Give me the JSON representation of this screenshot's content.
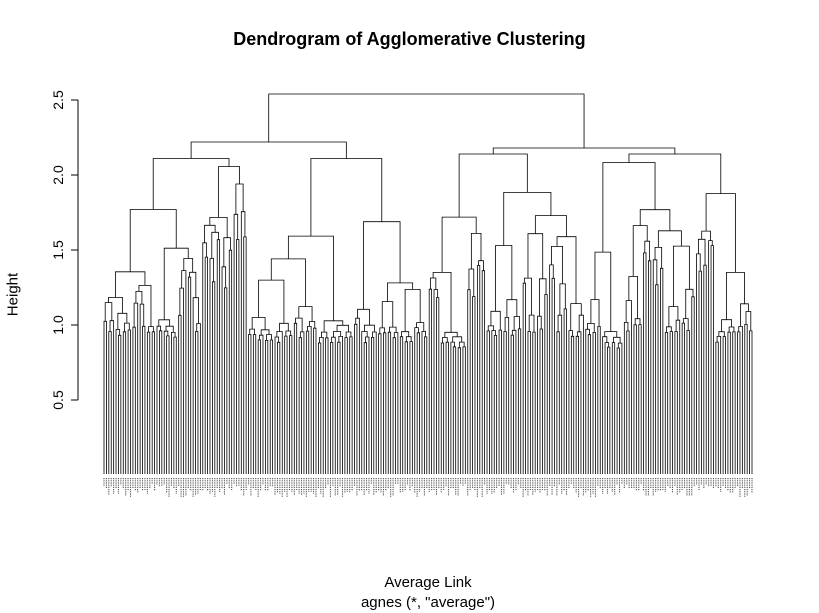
{
  "chart_data": {
    "type": "dendrogram",
    "title": "Dendrogram of Agglomerative Clustering",
    "xlabel": "Average Link",
    "sublabel": "agnes (*, \"average\")",
    "ylabel": "Height",
    "yticks": [
      0.5,
      1.0,
      1.5,
      2.0,
      2.5
    ],
    "ytick_labels": [
      "0.5",
      "1.0",
      "1.5",
      "2.0",
      "2.5"
    ],
    "ylim": [
      0,
      2.55
    ],
    "leaf_height": 0,
    "leaf_count": 270,
    "leaf_labels_legible": false,
    "root_height": 2.54,
    "top_merges": [
      {
        "name": "root",
        "height": 2.54
      },
      {
        "name": "left-main",
        "height": 2.22
      },
      {
        "name": "right-main",
        "height": 2.18
      },
      {
        "name": "left-a",
        "height": 2.11
      },
      {
        "name": "left-b",
        "height": 2.11
      },
      {
        "name": "right-a",
        "height": 2.14
      },
      {
        "name": "right-b",
        "height": 2.14
      }
    ]
  }
}
